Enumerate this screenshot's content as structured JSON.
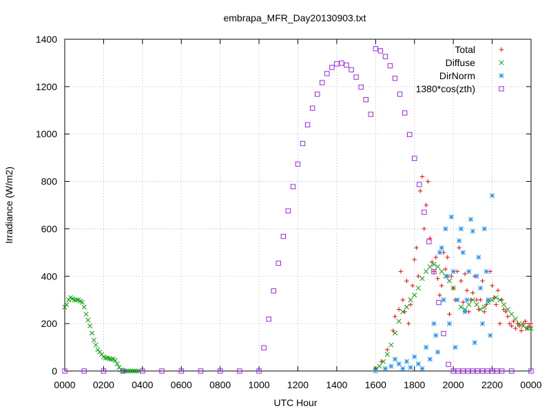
{
  "chart_data": {
    "type": "scatter",
    "title": "embrapa_MFR_Day20130903.txt",
    "xlabel": "UTC Hour",
    "ylabel": "Irradiance (W/m2)",
    "xlim": [
      0,
      24
    ],
    "ylim": [
      0,
      1400
    ],
    "x_ticks": [
      {
        "value": 0,
        "label": "0000"
      },
      {
        "value": 2,
        "label": "0200"
      },
      {
        "value": 4,
        "label": "0400"
      },
      {
        "value": 6,
        "label": "0600"
      },
      {
        "value": 8,
        "label": "0800"
      },
      {
        "value": 10,
        "label": "1000"
      },
      {
        "value": 12,
        "label": "1200"
      },
      {
        "value": 14,
        "label": "1400"
      },
      {
        "value": 16,
        "label": "1600"
      },
      {
        "value": 18,
        "label": "1800"
      },
      {
        "value": 20,
        "label": "2000"
      },
      {
        "value": 22,
        "label": "2200"
      },
      {
        "value": 24,
        "label": "0000"
      }
    ],
    "y_ticks": [
      0,
      200,
      400,
      600,
      800,
      1000,
      1200,
      1400
    ],
    "grid": true,
    "legend_position": "top-right",
    "series": [
      {
        "name": "Total",
        "marker": "+",
        "color": "#ff0000",
        "x": [
          16.0,
          16.3,
          16.6,
          16.9,
          17.0,
          17.2,
          17.3,
          17.4,
          17.5,
          17.6,
          17.7,
          17.8,
          17.9,
          18.0,
          18.1,
          18.2,
          18.3,
          18.4,
          18.5,
          18.6,
          18.7,
          18.8,
          18.9,
          19.0,
          19.1,
          19.2,
          19.3,
          19.4,
          19.5,
          19.6,
          19.7,
          19.8,
          19.9,
          20.0,
          20.1,
          20.2,
          20.3,
          20.4,
          20.5,
          20.6,
          20.7,
          20.8,
          20.9,
          21.0,
          21.1,
          21.2,
          21.3,
          21.4,
          21.5,
          21.6,
          21.7,
          21.8,
          21.9,
          22.0,
          22.1,
          22.2,
          22.3,
          22.4,
          22.5,
          22.6,
          22.7,
          22.8,
          22.9,
          23.0,
          23.1,
          23.2,
          23.3,
          23.4,
          23.5,
          23.6,
          23.7,
          23.8,
          23.9,
          24.0
        ],
        "y": [
          10,
          40,
          90,
          170,
          230,
          260,
          420,
          300,
          250,
          380,
          200,
          280,
          360,
          470,
          520,
          400,
          760,
          820,
          600,
          700,
          800,
          560,
          460,
          420,
          480,
          390,
          320,
          360,
          500,
          430,
          480,
          240,
          400,
          350,
          300,
          420,
          520,
          380,
          290,
          410,
          340,
          250,
          300,
          330,
          400,
          300,
          260,
          300,
          380,
          250,
          280,
          300,
          420,
          360,
          310,
          280,
          340,
          200,
          300,
          260,
          250,
          230,
          200,
          190,
          210,
          180,
          200,
          190,
          170,
          200,
          210,
          180,
          190,
          200
        ]
      },
      {
        "name": "Diffuse",
        "marker": "x",
        "color": "#00a000",
        "x": [
          0.0,
          0.1,
          0.2,
          0.3,
          0.4,
          0.5,
          0.6,
          0.7,
          0.8,
          0.9,
          1.0,
          1.1,
          1.2,
          1.3,
          1.4,
          1.5,
          1.6,
          1.7,
          1.8,
          1.9,
          2.0,
          2.1,
          2.2,
          2.3,
          2.4,
          2.5,
          2.6,
          2.7,
          2.8,
          2.9,
          3.0,
          3.1,
          3.2,
          3.3,
          3.4,
          3.5,
          3.6,
          3.7,
          3.8,
          16.0,
          16.2,
          16.4,
          16.6,
          16.8,
          17.0,
          17.2,
          17.4,
          17.6,
          17.8,
          18.0,
          18.2,
          18.4,
          18.6,
          18.8,
          19.0,
          19.2,
          19.4,
          19.6,
          19.8,
          20.0,
          20.2,
          20.4,
          20.6,
          20.8,
          21.0,
          21.2,
          21.4,
          21.6,
          21.8,
          22.0,
          22.2,
          22.4,
          22.6,
          22.8,
          23.0,
          23.2,
          23.4,
          23.6,
          23.8,
          24.0
        ],
        "y": [
          270,
          280,
          300,
          310,
          305,
          300,
          300,
          300,
          295,
          290,
          270,
          240,
          215,
          190,
          160,
          130,
          110,
          90,
          80,
          70,
          60,
          55,
          55,
          52,
          50,
          50,
          45,
          30,
          15,
          5,
          0,
          0,
          0,
          0,
          0,
          0,
          0,
          0,
          0,
          10,
          20,
          40,
          70,
          110,
          160,
          210,
          250,
          270,
          300,
          320,
          350,
          390,
          420,
          440,
          450,
          440,
          420,
          400,
          380,
          350,
          300,
          270,
          260,
          280,
          300,
          280,
          260,
          270,
          290,
          300,
          310,
          300,
          280,
          260,
          240,
          220,
          200,
          190,
          180,
          180
        ]
      },
      {
        "name": "DirNorm",
        "marker": "*",
        "color": "#1e90ff",
        "x": [
          16.0,
          16.5,
          16.8,
          17.0,
          17.2,
          17.4,
          17.6,
          17.8,
          18.0,
          18.2,
          18.4,
          18.6,
          18.8,
          19.0,
          19.1,
          19.2,
          19.3,
          19.4,
          19.5,
          19.6,
          19.7,
          19.8,
          19.9,
          20.0,
          20.1,
          20.2,
          20.3,
          20.4,
          20.5,
          20.6,
          20.7,
          20.8,
          20.9,
          21.0,
          21.1,
          21.2,
          21.3,
          21.4,
          21.5,
          21.6,
          21.7,
          21.8,
          21.9,
          22.0
        ],
        "y": [
          0,
          10,
          20,
          50,
          30,
          10,
          40,
          15,
          60,
          30,
          10,
          100,
          50,
          200,
          150,
          80,
          500,
          520,
          300,
          600,
          400,
          200,
          650,
          420,
          100,
          300,
          550,
          600,
          500,
          250,
          300,
          420,
          640,
          590,
          120,
          400,
          480,
          350,
          200,
          600,
          420,
          300,
          150,
          740
        ]
      },
      {
        "name": "1380*cos(zth)",
        "marker": "square",
        "color": "#a020f0",
        "x": [
          0,
          1,
          2,
          3,
          4,
          5,
          6,
          7,
          8,
          9,
          10.0,
          10.25,
          10.5,
          10.75,
          11.0,
          11.25,
          11.5,
          11.75,
          12.0,
          12.25,
          12.5,
          12.75,
          13.0,
          13.25,
          13.5,
          13.75,
          14.0,
          14.25,
          14.5,
          14.75,
          15.0,
          15.25,
          15.5,
          15.75,
          16.0,
          16.25,
          16.5,
          16.75,
          17.0,
          17.25,
          17.5,
          17.75,
          18.0,
          18.25,
          18.5,
          18.75,
          19.0,
          19.25,
          19.5,
          19.75,
          20.0,
          20.25,
          20.5,
          20.75,
          21.0,
          21.25,
          21.5,
          21.75,
          22.0,
          22.25,
          22.5,
          23,
          24
        ],
        "y": [
          0,
          0,
          0,
          0,
          0,
          0,
          0,
          0,
          0,
          0,
          0,
          98,
          219,
          338,
          455,
          568,
          676,
          778,
          873,
          960,
          1039,
          1109,
          1168,
          1217,
          1255,
          1281,
          1296,
          1299,
          1291,
          1271,
          1240,
          1198,
          1145,
          1083,
          1360,
          1351,
          1327,
          1288,
          1235,
          1168,
          1089,
          998,
          897,
          787,
          670,
          546,
          419,
          289,
          158,
          28,
          0,
          0,
          0,
          0,
          0,
          0,
          0,
          0,
          0,
          0,
          0,
          0,
          0
        ]
      }
    ]
  }
}
